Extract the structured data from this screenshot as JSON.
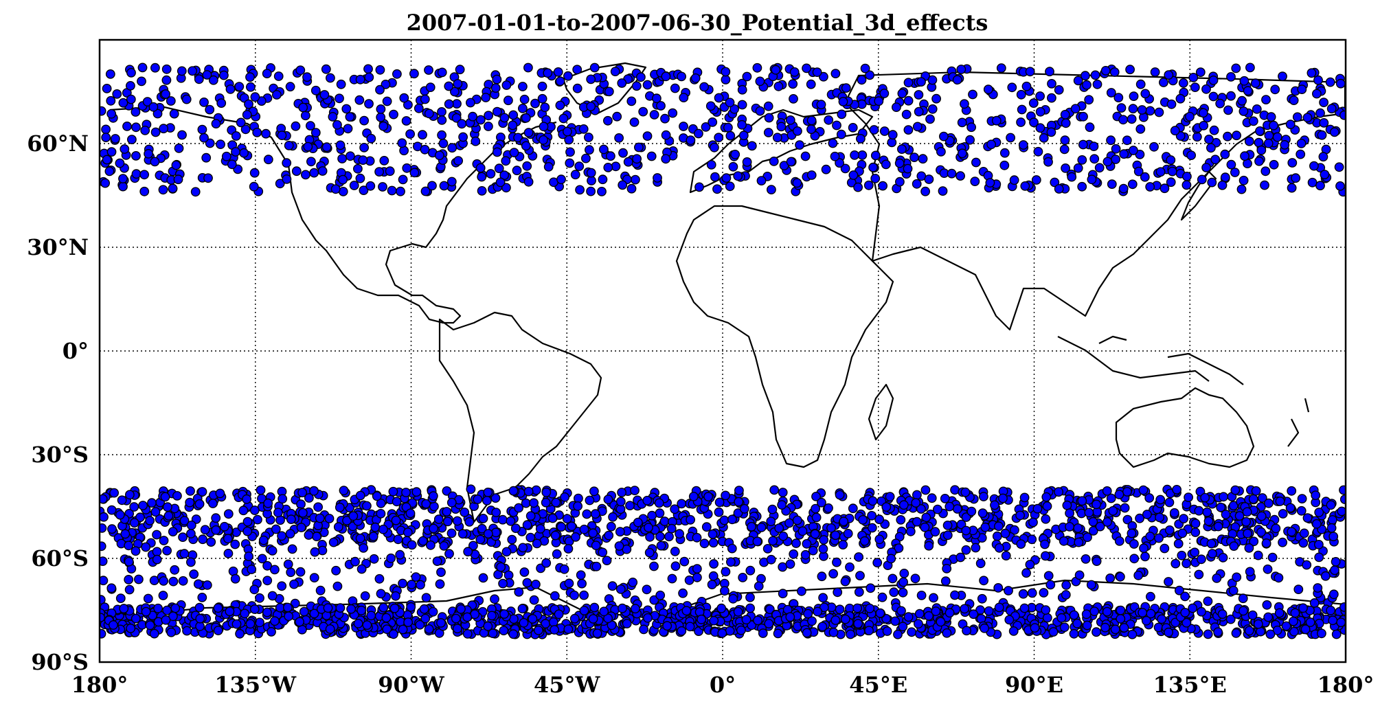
{
  "map": {
    "title": "2007-01-01-to-2007-06-30_Potential_3d_effects",
    "projection": "equirectangular",
    "lon_range": [
      -180,
      180
    ],
    "lat_range": [
      -90,
      90
    ],
    "grid": true,
    "marker": {
      "fill": "#0000ff",
      "edge": "#000000"
    },
    "coastline_color": "#000000",
    "x_ticks": [
      {
        "value": -180,
        "label": "180°"
      },
      {
        "value": -135,
        "label": "135°W"
      },
      {
        "value": -90,
        "label": "90°W"
      },
      {
        "value": -45,
        "label": "45°W"
      },
      {
        "value": 0,
        "label": "0°"
      },
      {
        "value": 45,
        "label": "45°E"
      },
      {
        "value": 90,
        "label": "90°E"
      },
      {
        "value": 135,
        "label": "135°E"
      },
      {
        "value": 180,
        "label": "180°"
      }
    ],
    "y_ticks": [
      {
        "value": 60,
        "label": "60°N"
      },
      {
        "value": 30,
        "label": "30°N"
      },
      {
        "value": 0,
        "label": "0°"
      },
      {
        "value": -30,
        "label": "30°S"
      },
      {
        "value": -60,
        "label": "60°S"
      },
      {
        "value": -90,
        "label": "90°S"
      }
    ],
    "point_bands": [
      {
        "lat_min": 46,
        "lat_max": 82,
        "density": "high"
      },
      {
        "lat_min": -56,
        "lat_max": -40,
        "density": "high"
      },
      {
        "lat_min": -74,
        "lat_max": -56,
        "density": "medium"
      },
      {
        "lat_min": -82,
        "lat_max": -74,
        "density": "high"
      }
    ]
  }
}
